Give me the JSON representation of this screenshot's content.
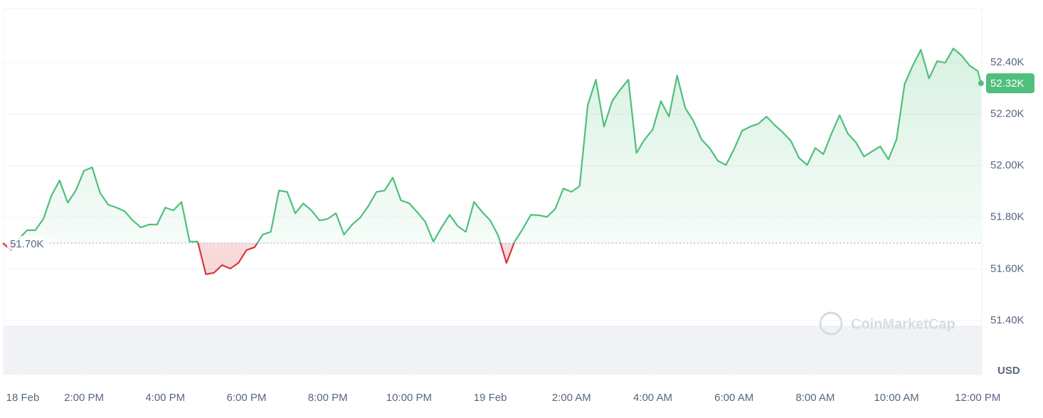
{
  "chart_data": {
    "type": "line",
    "watermark": "CoinMarketCap",
    "y_unit": "USD",
    "color_up": "#4fbf7b",
    "color_down": "#d9363e",
    "grid": true,
    "baseline": {
      "value": 51.7,
      "label": "51.70K"
    },
    "current_price": {
      "value": 52.32,
      "label": "52.32K"
    },
    "xlim": [
      12.02,
      36.1
    ],
    "xticks": [
      {
        "value": 12.46,
        "label": "18 Feb"
      },
      {
        "value": 14,
        "label": "2:00 PM"
      },
      {
        "value": 16,
        "label": "4:00 PM"
      },
      {
        "value": 18,
        "label": "6:00 PM"
      },
      {
        "value": 20,
        "label": "8:00 PM"
      },
      {
        "value": 22,
        "label": "10:00 PM"
      },
      {
        "value": 24,
        "label": "19 Feb"
      },
      {
        "value": 26,
        "label": "2:00 AM"
      },
      {
        "value": 28,
        "label": "4:00 AM"
      },
      {
        "value": 30,
        "label": "6:00 AM"
      },
      {
        "value": 32,
        "label": "8:00 AM"
      },
      {
        "value": 34,
        "label": "10:00 AM"
      },
      {
        "value": 36,
        "label": "12:00 PM"
      }
    ],
    "ylim": [
      51.19,
      52.61
    ],
    "yticks": [
      {
        "value": 51.4,
        "label": "51.40K"
      },
      {
        "value": 51.6,
        "label": "51.60K"
      },
      {
        "value": 51.8,
        "label": "51.80K"
      },
      {
        "value": 52.0,
        "label": "52.00K"
      },
      {
        "value": 52.2,
        "label": "52.20K"
      },
      {
        "value": 52.4,
        "label": "52.40K"
      }
    ],
    "x": [
      12.0,
      12.2,
      12.4,
      12.6,
      12.8,
      13.0,
      13.2,
      13.4,
      13.6,
      13.8,
      14.0,
      14.2,
      14.4,
      14.6,
      14.8,
      15.0,
      15.2,
      15.4,
      15.6,
      15.8,
      16.0,
      16.2,
      16.4,
      16.6,
      16.8,
      17.0,
      17.2,
      17.4,
      17.6,
      17.8,
      18.0,
      18.2,
      18.4,
      18.6,
      18.8,
      19.0,
      19.2,
      19.4,
      19.6,
      19.8,
      20.0,
      20.2,
      20.4,
      20.6,
      20.8,
      21.0,
      21.2,
      21.4,
      21.6,
      21.8,
      22.0,
      22.2,
      22.4,
      22.6,
      22.8,
      23.0,
      23.2,
      23.4,
      23.6,
      23.8,
      24.0,
      24.2,
      24.4,
      24.6,
      24.8,
      25.0,
      25.2,
      25.4,
      25.6,
      25.8,
      26.0,
      26.2,
      26.4,
      26.6,
      26.8,
      27.0,
      27.2,
      27.4,
      27.6,
      27.8,
      28.0,
      28.2,
      28.4,
      28.6,
      28.8,
      29.0,
      29.2,
      29.4,
      29.6,
      29.8,
      30.0,
      30.2,
      30.4,
      30.6,
      30.8,
      31.0,
      31.2,
      31.4,
      31.6,
      31.8,
      32.0,
      32.2,
      32.4,
      32.6,
      32.8,
      33.0,
      33.2,
      33.4,
      33.6,
      33.8,
      34.0,
      34.2,
      34.4,
      34.6,
      34.8,
      35.0,
      35.2,
      35.4,
      35.6,
      35.8,
      36.0,
      36.08
    ],
    "values": [
      51.7,
      51.673,
      51.717,
      51.75,
      51.75,
      51.794,
      51.885,
      51.943,
      51.857,
      51.904,
      51.981,
      51.994,
      51.893,
      51.849,
      51.838,
      51.824,
      51.788,
      51.761,
      51.772,
      51.772,
      51.838,
      51.827,
      51.86,
      51.706,
      51.706,
      51.579,
      51.585,
      51.615,
      51.601,
      51.623,
      51.673,
      51.684,
      51.733,
      51.744,
      51.904,
      51.899,
      51.816,
      51.854,
      51.827,
      51.788,
      51.794,
      51.816,
      51.733,
      51.772,
      51.799,
      51.844,
      51.899,
      51.904,
      51.954,
      51.866,
      51.855,
      51.821,
      51.783,
      51.706,
      51.761,
      51.81,
      51.766,
      51.744,
      51.86,
      51.821,
      51.788,
      51.728,
      51.623,
      51.706,
      51.755,
      51.81,
      51.808,
      51.802,
      51.833,
      51.912,
      51.899,
      51.921,
      52.235,
      52.334,
      52.152,
      52.251,
      52.295,
      52.334,
      52.05,
      52.102,
      52.141,
      52.251,
      52.191,
      52.35,
      52.224,
      52.174,
      52.102,
      52.069,
      52.02,
      52.003,
      52.064,
      52.136,
      52.152,
      52.163,
      52.191,
      52.158,
      52.13,
      52.097,
      52.031,
      52.003,
      52.069,
      52.045,
      52.125,
      52.196,
      52.125,
      52.091,
      52.036,
      52.056,
      52.075,
      52.025,
      52.102,
      52.317,
      52.389,
      52.45,
      52.339,
      52.406,
      52.4,
      52.455,
      52.428,
      52.389,
      52.367,
      52.32
    ]
  }
}
